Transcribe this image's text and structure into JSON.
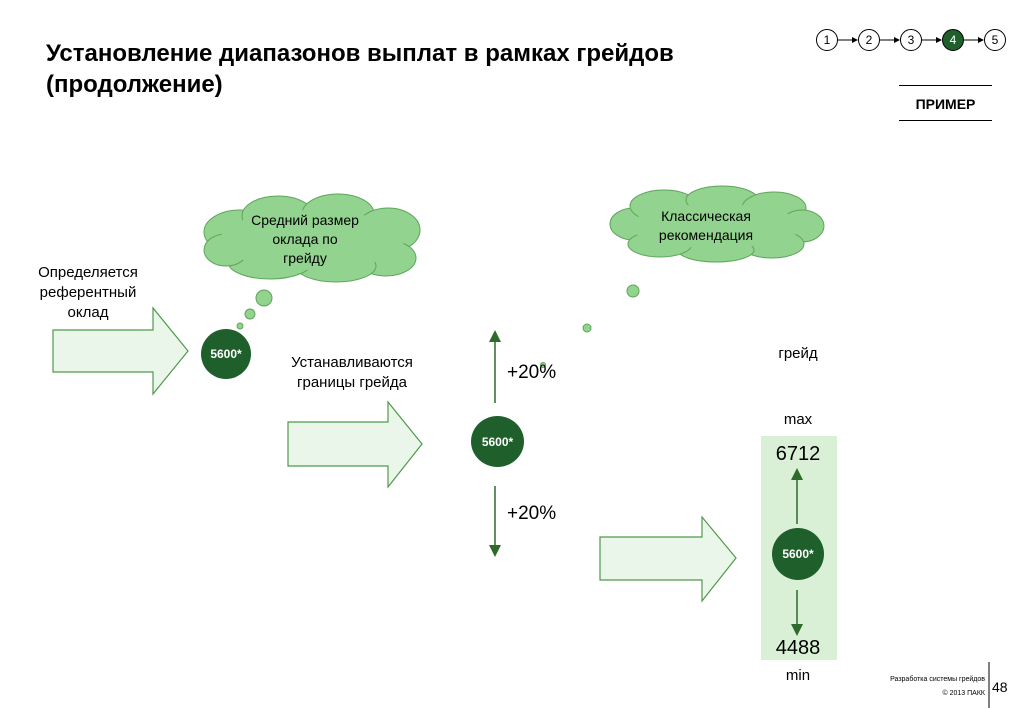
{
  "title": {
    "line1": "Установление диапазонов выплат в рамках грейдов",
    "line2": "(продолжение)"
  },
  "steps": [
    {
      "label": "1",
      "active": false
    },
    {
      "label": "2",
      "active": false
    },
    {
      "label": "3",
      "active": false
    },
    {
      "label": "4",
      "active": true
    },
    {
      "label": "5",
      "active": false
    }
  ],
  "example_label": "ПРИМЕР",
  "stage1": {
    "text_lines": [
      "Определяется",
      "референтный",
      "оклад"
    ],
    "badge": "5600*"
  },
  "cloud1": {
    "lines": [
      "Средний размер",
      "оклада по",
      "грейду"
    ]
  },
  "stage2": {
    "text_lines": [
      "Устанавливаются",
      "границы грейда"
    ],
    "badge": "5600*",
    "upper_pct": "+20%",
    "lower_pct": "+20%"
  },
  "cloud2": {
    "lines": [
      "Классическая",
      "рекомендация"
    ]
  },
  "stage3": {
    "grade_label": "грейд",
    "max_label": "max",
    "max_value": "6712",
    "badge": "5600*",
    "min_value": "4488",
    "min_label": "min"
  },
  "footer": {
    "project": "Разработка системы грейдов",
    "copyright": "© 2013 ПАКК",
    "page": "48"
  },
  "colors": {
    "dark_green": "#1f5f2c",
    "cloud_fill": "#92d38f",
    "arrow_fill": "#ebf6ea",
    "arrow_stroke": "#4f9a4a",
    "range_fill": "#d9f0d6"
  }
}
